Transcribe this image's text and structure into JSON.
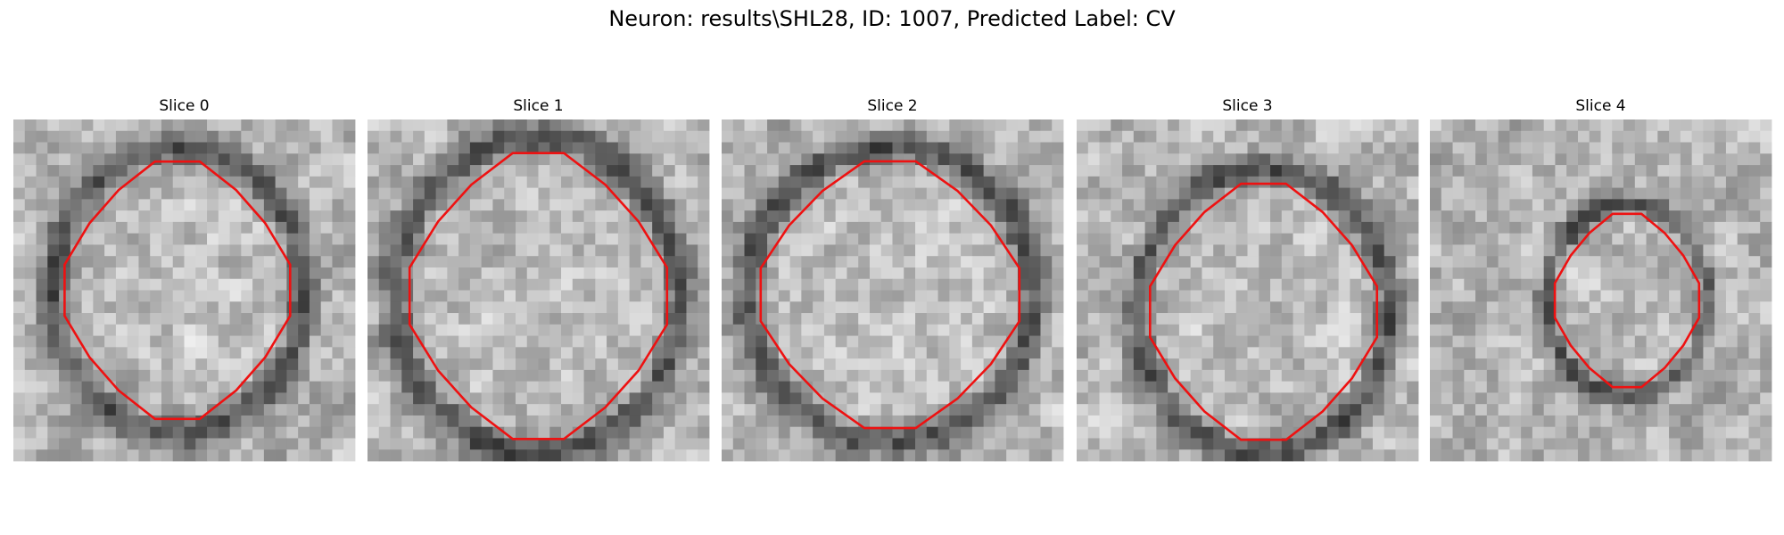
{
  "title": "Neuron: results\\SHL28, ID: 1007, Predicted Label: CV",
  "panels": [
    {
      "title": "Slice 0"
    },
    {
      "title": "Slice 1"
    },
    {
      "title": "Slice 2"
    },
    {
      "title": "Slice 3"
    },
    {
      "title": "Slice 4"
    }
  ]
}
